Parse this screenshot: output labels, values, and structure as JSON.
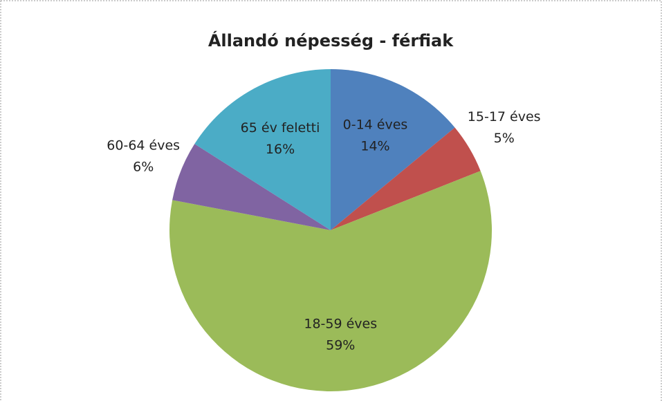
{
  "chart_data": {
    "type": "pie",
    "title": "Állandó népesség - férfiak",
    "categories": [
      "0-14 éves",
      "15-17 éves",
      "18-59 éves",
      "60-64 éves",
      "65 év feletti"
    ],
    "values": [
      14,
      5,
      59,
      6,
      16
    ],
    "value_labels": [
      "14%",
      "5%",
      "59%",
      "6%",
      "16%"
    ],
    "colors": [
      "#4f81bd",
      "#c0504d",
      "#9bbb59",
      "#8064a2",
      "#4bacc6"
    ]
  }
}
